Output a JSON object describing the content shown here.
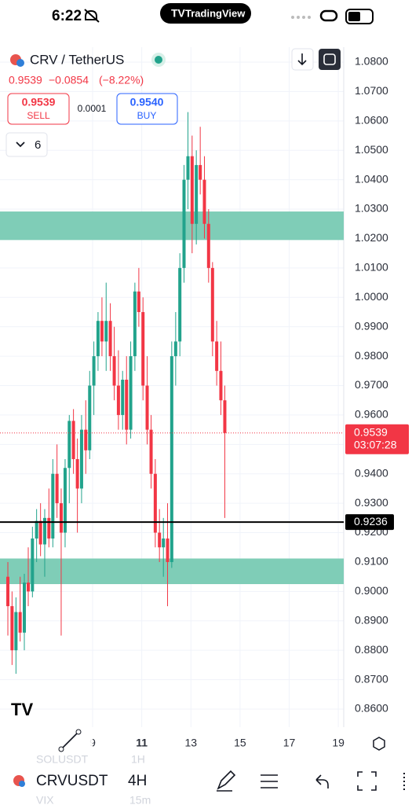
{
  "status_bar": {
    "time": "6:22",
    "app": "TradingView"
  },
  "header": {
    "symbol": "CRV / TetherUS",
    "price": "0.9539",
    "change": "−0.0854",
    "change_percent": "(−8.22%)",
    "sell_price": "0.9539",
    "sell": "SELL",
    "spread": "0.0001",
    "buy_price": "0.9540",
    "buy": "BUY",
    "indicators": "6"
  },
  "chart_data": {
    "type": "candlestick",
    "x": [
      5.55,
      5.72,
      5.88,
      6.05,
      6.22,
      6.38,
      6.55,
      6.72,
      6.88,
      7.05,
      7.22,
      7.38,
      7.55,
      7.72,
      7.88,
      8.05,
      8.22,
      8.38,
      8.55,
      8.72,
      8.88,
      9.05,
      9.22,
      9.38,
      9.55,
      9.72,
      9.88,
      10.05,
      10.22,
      10.38,
      10.55,
      10.72,
      10.88,
      11.05,
      11.22,
      11.38,
      11.55,
      11.72,
      11.88,
      12.05,
      12.22,
      12.38,
      12.55,
      12.72,
      12.88,
      13.05,
      13.22,
      13.38,
      13.55,
      13.72,
      13.88,
      14.05,
      14.22,
      14.38
    ],
    "open": [
      0.905,
      0.895,
      0.88,
      0.893,
      0.886,
      0.903,
      0.9,
      0.918,
      0.924,
      0.916,
      0.925,
      0.918,
      0.94,
      0.93,
      0.92,
      0.942,
      0.958,
      0.945,
      0.935,
      0.955,
      0.948,
      0.97,
      0.98,
      0.992,
      0.985,
      0.992,
      0.98,
      0.97,
      0.96,
      0.972,
      0.955,
      0.98,
      1.002,
      0.995,
      0.97,
      0.955,
      0.94,
      0.92,
      0.915,
      0.918,
      0.91,
      0.98,
      0.985,
      1.01,
      1.04,
      1.048,
      1.025,
      1.045,
      1.04,
      1.025,
      1.01,
      0.985,
      0.975,
      0.965
    ],
    "high": [
      0.91,
      0.9,
      0.898,
      0.905,
      0.906,
      0.915,
      0.922,
      0.928,
      0.93,
      0.928,
      0.935,
      0.945,
      0.95,
      0.935,
      0.945,
      0.96,
      0.962,
      0.952,
      0.96,
      0.965,
      0.975,
      0.985,
      0.995,
      1.0,
      1.005,
      0.998,
      0.99,
      0.982,
      0.975,
      0.98,
      0.985,
      1.005,
      1.01,
      1.0,
      0.98,
      0.96,
      0.945,
      0.928,
      0.925,
      0.93,
      0.985,
      0.995,
      1.015,
      1.045,
      1.063,
      1.055,
      1.05,
      1.058,
      1.048,
      1.03,
      1.012,
      0.992,
      0.985,
      0.97
    ],
    "low": [
      0.885,
      0.875,
      0.872,
      0.883,
      0.88,
      0.895,
      0.898,
      0.91,
      0.912,
      0.905,
      0.915,
      0.915,
      0.925,
      0.885,
      0.915,
      0.93,
      0.94,
      0.92,
      0.93,
      0.94,
      0.945,
      0.96,
      0.975,
      0.98,
      0.975,
      0.975,
      0.965,
      0.955,
      0.955,
      0.95,
      0.952,
      0.975,
      0.99,
      0.965,
      0.95,
      0.935,
      0.915,
      0.91,
      0.905,
      0.895,
      0.908,
      0.97,
      0.98,
      1.005,
      1.03,
      1.015,
      1.018,
      1.035,
      1.02,
      1.005,
      0.98,
      0.97,
      0.96,
      0.925
    ],
    "close": [
      0.895,
      0.88,
      0.893,
      0.886,
      0.903,
      0.9,
      0.918,
      0.924,
      0.916,
      0.925,
      0.918,
      0.94,
      0.93,
      0.92,
      0.942,
      0.958,
      0.945,
      0.935,
      0.955,
      0.948,
      0.97,
      0.98,
      0.992,
      0.985,
      0.992,
      0.98,
      0.97,
      0.96,
      0.972,
      0.955,
      0.98,
      1.002,
      0.995,
      0.97,
      0.955,
      0.94,
      0.92,
      0.915,
      0.918,
      0.91,
      0.98,
      0.985,
      1.01,
      1.04,
      1.048,
      1.025,
      1.045,
      1.04,
      1.025,
      1.01,
      0.985,
      0.975,
      0.965,
      0.9539
    ],
    "up_color": "#22a38c",
    "down_color": "#f23645",
    "zones": [
      {
        "from": 1.0195,
        "to": 1.0292
      },
      {
        "from": 0.9025,
        "to": 0.9112
      }
    ],
    "zone_color": "#7fcdb7",
    "price_line": {
      "value": 0.9236,
      "label": "0.9236"
    },
    "last_price": {
      "value": 0.9539,
      "label": "0.9539",
      "countdown": "03:07:28"
    },
    "xlim": [
      5.23,
      19.22
    ],
    "xticks": [
      9,
      11,
      13,
      15,
      17,
      19
    ],
    "ylim": [
      0.86,
      1.08
    ],
    "yticks": [
      {
        "value": 0.86,
        "label": "0.8600"
      },
      {
        "value": 0.87,
        "label": "0.8700"
      },
      {
        "value": 0.88,
        "label": "0.8800"
      },
      {
        "value": 0.89,
        "label": "0.8900"
      },
      {
        "value": 0.9,
        "label": "0.9000"
      },
      {
        "value": 0.91,
        "label": "0.9100"
      },
      {
        "value": 0.92,
        "label": "0.9200"
      },
      {
        "value": 0.93,
        "label": "0.9300"
      },
      {
        "value": 0.94,
        "label": "0.9400"
      },
      {
        "value": 0.95,
        "label": "0.9500"
      },
      {
        "value": 0.96,
        "label": "0.9600"
      },
      {
        "value": 0.97,
        "label": "0.9700"
      },
      {
        "value": 0.98,
        "label": "0.9800"
      },
      {
        "value": 0.99,
        "label": "0.9900"
      },
      {
        "value": 1.0,
        "label": "1.0000"
      },
      {
        "value": 1.01,
        "label": "1.0100"
      },
      {
        "value": 1.02,
        "label": "1.0200"
      },
      {
        "value": 1.03,
        "label": "1.0300"
      },
      {
        "value": 1.04,
        "label": "1.0400"
      },
      {
        "value": 1.05,
        "label": "1.0500"
      },
      {
        "value": 1.06,
        "label": "1.0600"
      },
      {
        "value": 1.07,
        "label": "1.0700"
      },
      {
        "value": 1.08,
        "label": "1.0800"
      }
    ],
    "grid": true
  },
  "toolbar": {
    "symbol": "CRVUSDT",
    "interval": "4H",
    "prev_symbol": "SOLUSDT",
    "prev_interval": "1H",
    "next_symbol": "VIX",
    "next_interval": "15m"
  }
}
